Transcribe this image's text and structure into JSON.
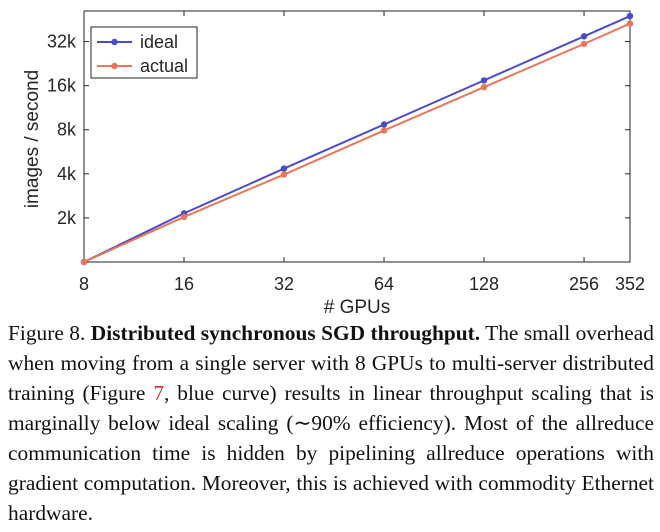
{
  "chart_data": {
    "type": "line",
    "xlabel": "# GPUs",
    "ylabel": "images / second",
    "x_scale": "log2",
    "y_scale": "log2",
    "xlim": [
      8,
      352
    ],
    "ylim": [
      1024,
      53000
    ],
    "x": [
      8,
      16,
      32,
      64,
      128,
      256,
      352
    ],
    "xtick_labels": [
      "8",
      "16",
      "32",
      "64",
      "128",
      "256",
      "352"
    ],
    "yticks": [
      2048,
      4096,
      8192,
      16384,
      32768
    ],
    "ytick_labels": [
      "2k",
      "4k",
      "8k",
      "16k",
      "32k"
    ],
    "grid": false,
    "legend_position": "top-left",
    "series": [
      {
        "name": "ideal",
        "color": "#4b4bc8",
        "values": [
          1024,
          2200,
          4450,
          8900,
          17800,
          35600,
          48950
        ]
      },
      {
        "name": "actual",
        "color": "#e8765a",
        "values": [
          1024,
          2080,
          4050,
          8100,
          16000,
          31600,
          43500
        ]
      }
    ]
  },
  "caption": {
    "label": "Figure 8.",
    "title": "Distributed synchronous SGD throughput.",
    "text_1": "The small overhead when moving from a single server with 8 GPUs to multi-server distributed training (Figure ",
    "ref": "7",
    "text_2": ", blue curve) results in linear throughput scaling that is marginally below ideal scaling (∼90% efficiency). Most of the allreduce communication time is hidden by pipelining allreduce operations with gradient computation. Moreover, this is achieved with commodity Ethernet hardware."
  }
}
